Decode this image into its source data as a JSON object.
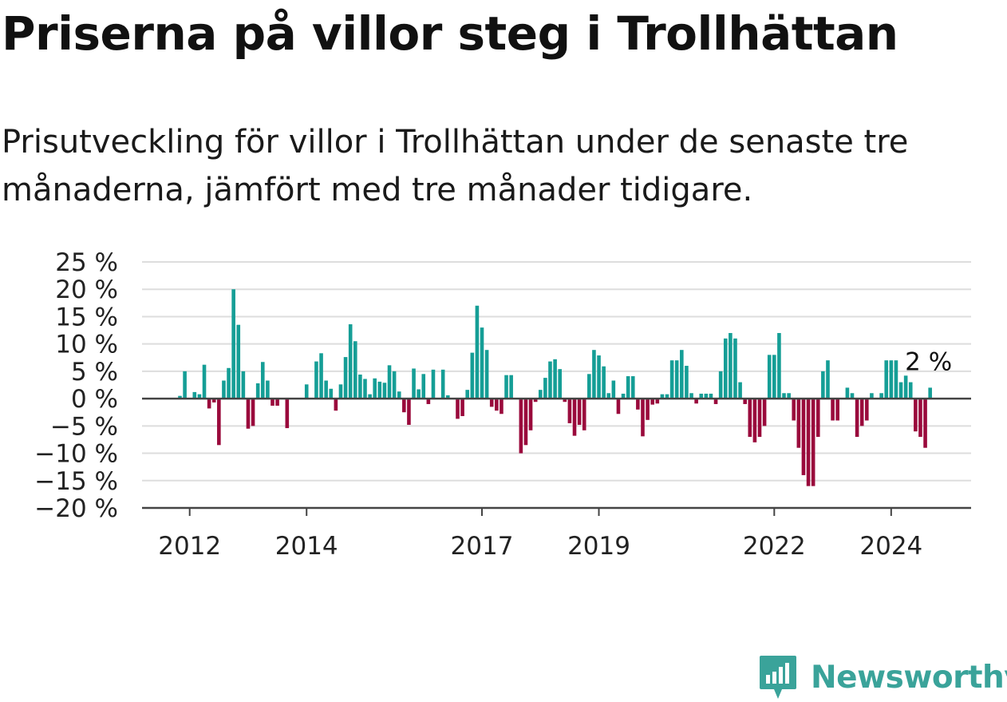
{
  "title": "Priserna på villor steg i Trollhättan",
  "subtitle": "Prisutveckling för villor i Trollhättan under de senaste tre månaderna, jämfört med tre månader tidigare.",
  "brand": {
    "name": "Newsworthy",
    "icon": "newsworthy-logo-icon"
  },
  "colors": {
    "positive": "#159e96",
    "negative": "#9a0a3c",
    "grid": "#dddddd",
    "axis": "#444444",
    "brand": "#3aa39a"
  },
  "chart_data": {
    "type": "bar",
    "start": "2011-11",
    "frequency": "monthly",
    "ylim": [
      -20,
      25
    ],
    "yticks": [
      25,
      20,
      15,
      10,
      5,
      0,
      -5,
      -10,
      -15,
      -20
    ],
    "ytick_labels": [
      "25 %",
      "20 %",
      "15 %",
      "10 %",
      "5 %",
      "0 %",
      "−5 %",
      "−10 %",
      "−15 %",
      "−20 %"
    ],
    "xtick_labels": [
      "2012",
      "2014",
      "2017",
      "2019",
      "2022",
      "2024"
    ],
    "annotation": "2 %",
    "values": [
      0.5,
      5,
      0,
      1.2,
      0.8,
      6.2,
      -1.8,
      -0.7,
      -8.5,
      3.3,
      5.6,
      20,
      13.5,
      5,
      -5.5,
      -5,
      2.8,
      6.7,
      3.3,
      -1.3,
      -1.3,
      0,
      -5.4,
      0,
      0,
      0,
      2.6,
      0,
      6.8,
      8.3,
      3.3,
      1.8,
      -2.2,
      2.6,
      7.6,
      13.6,
      10.5,
      4.4,
      3.6,
      0.8,
      3.7,
      3.1,
      2.9,
      6.1,
      5,
      1.3,
      -2.5,
      -4.8,
      5.5,
      1.7,
      4.5,
      -1,
      5.3,
      0,
      5.3,
      0.6,
      0,
      -3.7,
      -3.2,
      1.6,
      8.4,
      17,
      13,
      8.9,
      -1.5,
      -2.2,
      -2.8,
      4.3,
      4.3,
      0,
      -10,
      -8.5,
      -5.8,
      -0.6,
      1.6,
      3.8,
      6.8,
      7.2,
      5.4,
      -0.6,
      -4.5,
      -6.8,
      -4.8,
      -5.8,
      4.5,
      8.9,
      7.9,
      5.9,
      1,
      3.3,
      -2.8,
      0.9,
      4.1,
      4.1,
      -2,
      -6.9,
      -3.9,
      -1.1,
      -0.9,
      0.8,
      0.8,
      7,
      7,
      8.9,
      6,
      1,
      -0.9,
      0.9,
      0.9,
      0.9,
      -1,
      5,
      11,
      12,
      11,
      3,
      -1,
      -7,
      -8,
      -7,
      -5,
      8,
      8,
      12,
      1,
      1,
      -4,
      -9,
      -14,
      -16,
      -16,
      -7,
      5,
      7,
      -4,
      -4,
      0,
      2,
      1,
      -7,
      -5,
      -4,
      1,
      0,
      1,
      7,
      7,
      7,
      3,
      4.2,
      3,
      -6,
      -7,
      -9,
      2
    ]
  }
}
